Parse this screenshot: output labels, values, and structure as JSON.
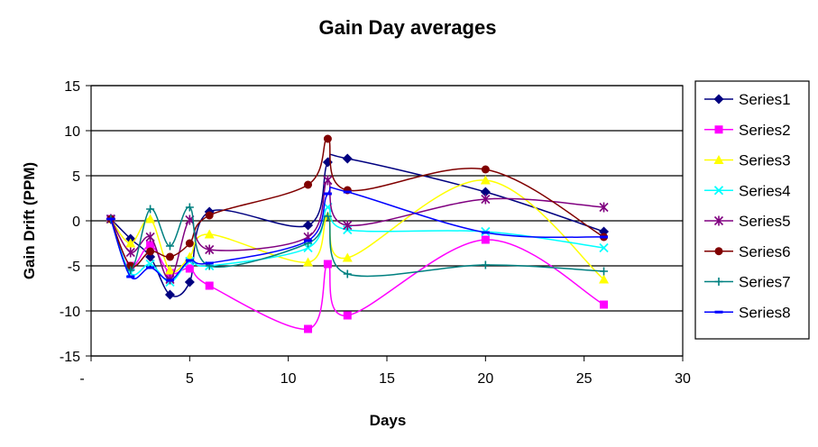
{
  "chart_data": {
    "type": "line",
    "title": "Gain Day averages",
    "xlabel": "Days",
    "ylabel": "Gain Drift (PPM)",
    "xlim": [
      0,
      30
    ],
    "ylim": [
      -15,
      15
    ],
    "x_ticks": [
      0,
      5,
      10,
      15,
      20,
      25,
      30
    ],
    "x_tick_labels": [
      "-",
      "5",
      "10",
      "15",
      "20",
      "25",
      "30"
    ],
    "y_ticks": [
      15,
      10,
      5,
      0,
      -5,
      -10,
      -15
    ],
    "y_tick_labels": [
      "15",
      "10",
      "5",
      "0",
      "-5",
      "-10",
      "-15"
    ],
    "grid": "horizontal",
    "legend": "right",
    "series": [
      {
        "name": "Series1",
        "color": "#000080",
        "marker": "diamond",
        "x": [
          1,
          2,
          3,
          4,
          5,
          6,
          11,
          12,
          13,
          20,
          26
        ],
        "y": [
          0.2,
          -2.0,
          -4.0,
          -8.2,
          -6.8,
          1.0,
          -0.5,
          6.5,
          6.9,
          3.2,
          -1.2
        ]
      },
      {
        "name": "Series2",
        "color": "#FF00FF",
        "marker": "square",
        "x": [
          1,
          2,
          3,
          4,
          5,
          6,
          11,
          12,
          13,
          20,
          26
        ],
        "y": [
          0.2,
          -5.0,
          -2.7,
          -5.8,
          -5.3,
          -7.2,
          -12.0,
          -4.8,
          -10.5,
          -2.1,
          -9.3
        ]
      },
      {
        "name": "Series3",
        "color": "#FFFF00",
        "marker": "triangle",
        "x": [
          1,
          2,
          3,
          4,
          5,
          6,
          11,
          12,
          13,
          20,
          26
        ],
        "y": [
          0.2,
          -2.5,
          0.2,
          -5.5,
          -4.0,
          -1.5,
          -4.6,
          0.5,
          -4.1,
          4.5,
          -6.5
        ]
      },
      {
        "name": "Series4",
        "color": "#00FFFF",
        "marker": "x",
        "x": [
          1,
          2,
          3,
          4,
          5,
          6,
          11,
          12,
          13,
          20,
          26
        ],
        "y": [
          0.2,
          -5.8,
          -4.8,
          -6.8,
          -4.5,
          -5.0,
          -3.0,
          1.5,
          -1.0,
          -1.2,
          -3.0
        ]
      },
      {
        "name": "Series5",
        "color": "#800080",
        "marker": "star",
        "x": [
          1,
          2,
          3,
          4,
          5,
          6,
          11,
          12,
          13,
          20,
          26
        ],
        "y": [
          0.2,
          -3.5,
          -1.8,
          -6.5,
          0.1,
          -3.2,
          -1.8,
          4.5,
          -0.5,
          2.4,
          1.5
        ]
      },
      {
        "name": "Series6",
        "color": "#800000",
        "marker": "circle",
        "x": [
          1,
          2,
          3,
          4,
          5,
          6,
          11,
          12,
          13,
          20,
          26
        ],
        "y": [
          0.2,
          -5.0,
          -3.4,
          -4.0,
          -2.5,
          0.6,
          4.0,
          9.1,
          3.4,
          5.7,
          -1.8
        ]
      },
      {
        "name": "Series7",
        "color": "#008080",
        "marker": "plus",
        "x": [
          1,
          2,
          3,
          4,
          5,
          6,
          11,
          12,
          13,
          20,
          26
        ],
        "y": [
          0.2,
          -5.5,
          1.3,
          -2.8,
          1.5,
          -5.0,
          -2.5,
          0.5,
          -5.9,
          -4.9,
          -5.6
        ]
      },
      {
        "name": "Series8",
        "color": "#0000FF",
        "marker": "dash",
        "x": [
          1,
          2,
          3,
          4,
          5,
          6,
          11,
          12,
          13,
          20,
          26
        ],
        "y": [
          0.2,
          -6.2,
          -5.2,
          -6.6,
          -4.4,
          -4.7,
          -2.2,
          3.0,
          3.2,
          -1.3,
          -1.8
        ]
      }
    ]
  }
}
